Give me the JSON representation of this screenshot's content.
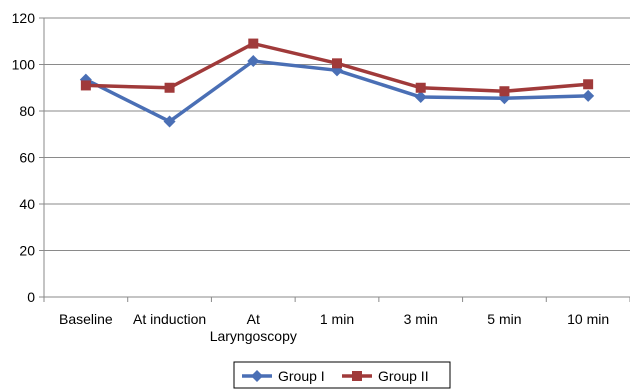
{
  "chart_data": {
    "type": "line",
    "title": "",
    "xlabel": "",
    "ylabel": "",
    "categories": [
      "Baseline",
      "At induction",
      "At Laryngoscopy",
      "1 min",
      "3 min",
      "5 min",
      "10 min"
    ],
    "category_lines": [
      [
        "Baseline"
      ],
      [
        "At induction"
      ],
      [
        "At",
        "Laryngoscopy"
      ],
      [
        "1 min"
      ],
      [
        "3 min"
      ],
      [
        "5 min"
      ],
      [
        "10 min"
      ]
    ],
    "ylim": [
      0,
      120
    ],
    "yticks": [
      "0",
      "20",
      "40",
      "60",
      "80",
      "100",
      "120"
    ],
    "grid": true,
    "legend_position": "bottom",
    "series": [
      {
        "name": "Group I",
        "values": [
          93.5,
          75.5,
          101.5,
          97.5,
          86,
          85.5,
          86.5
        ],
        "color": "#4a6fb5",
        "marker": "diamond"
      },
      {
        "name": "Group II",
        "values": [
          91,
          90,
          109,
          100.5,
          90,
          88.5,
          91.5
        ],
        "color": "#a03a3a",
        "marker": "square"
      }
    ]
  }
}
